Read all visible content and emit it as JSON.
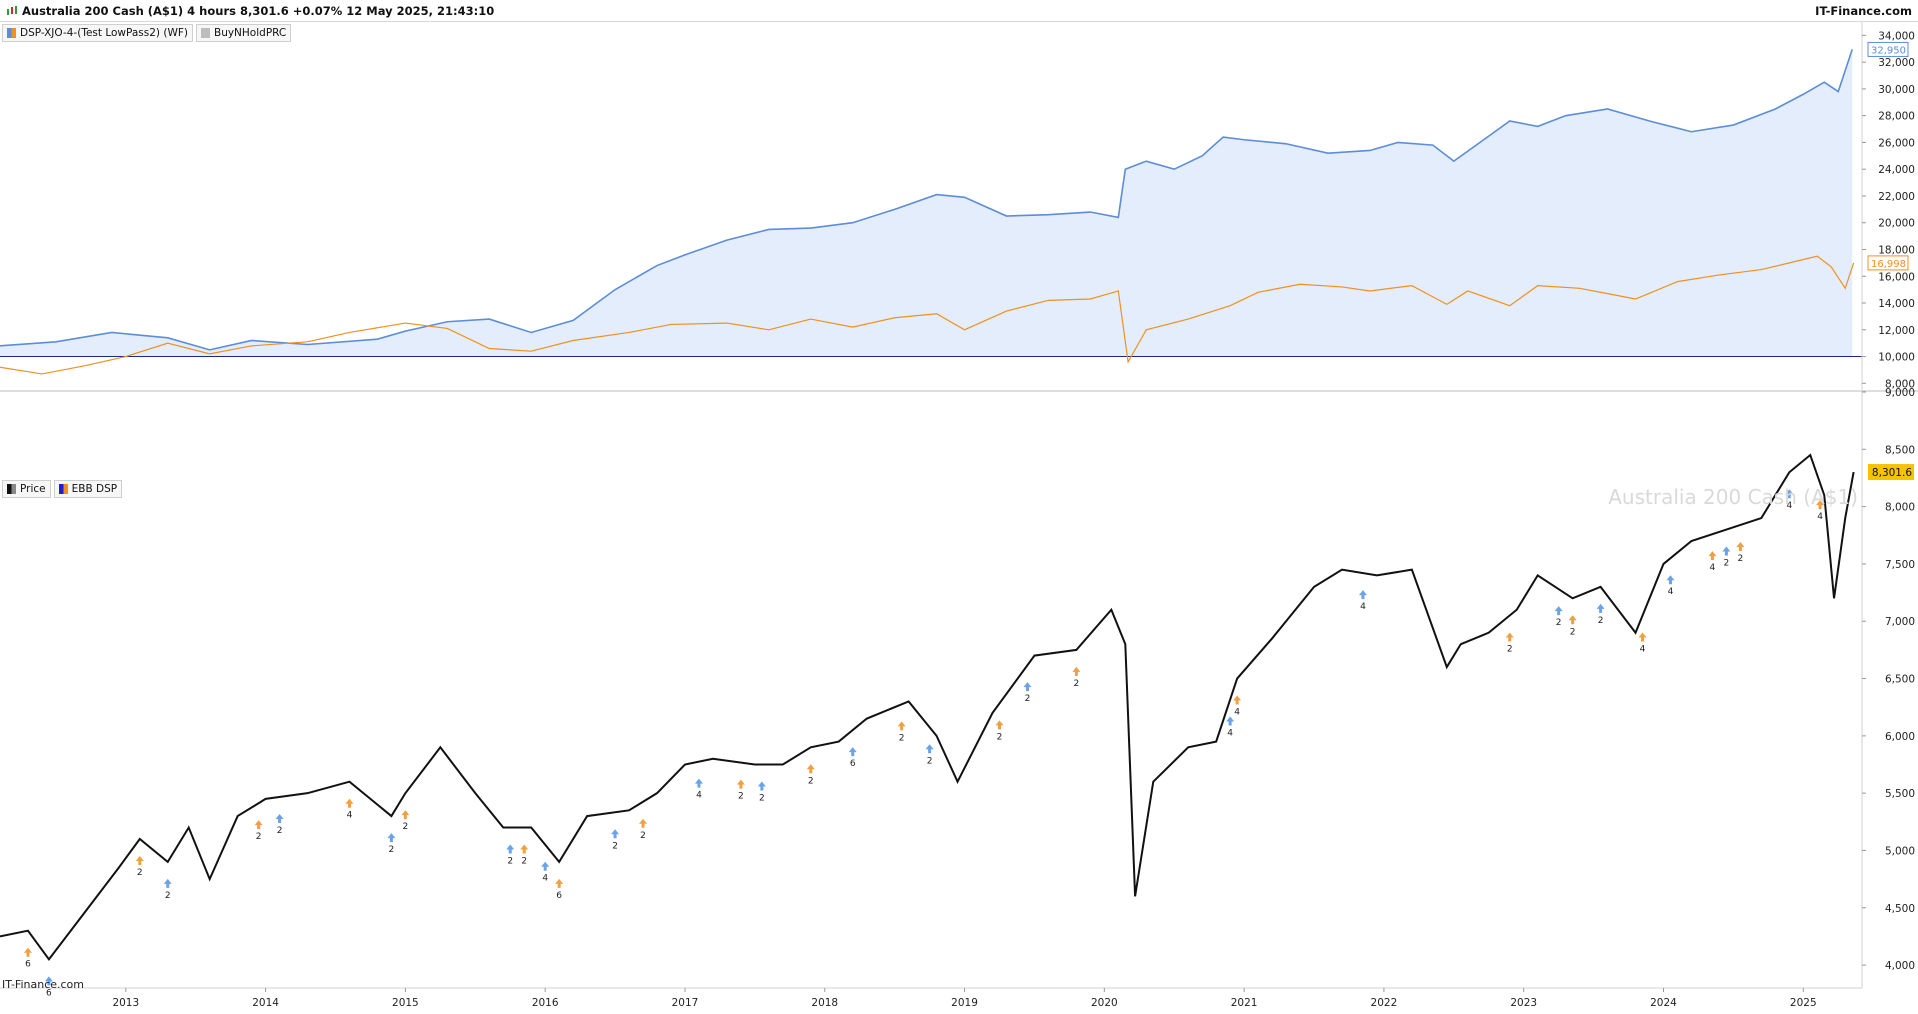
{
  "header": {
    "title": "Australia 200 Cash (A$1) 4 hours 8,301.6 +0.07% 12 May 2025, 21:43:10",
    "brand": "IT-Finance.com"
  },
  "top_panel": {
    "legend": [
      {
        "label": "DSP-XJO-4-(Test LowPass2) (WF)",
        "colors": [
          "#5b8dd9",
          "#f0901e"
        ]
      },
      {
        "label": "BuyNHoldPRC",
        "colors": [
          "#bdbdbd"
        ]
      }
    ]
  },
  "bottom_panel": {
    "legend": [
      {
        "label": "Price",
        "colors": [
          "#111111",
          "#888888"
        ]
      },
      {
        "label": "EBB DSP",
        "colors": [
          "#1f1fd0",
          "#f0901e"
        ]
      }
    ],
    "watermark": "Australia 200 Cash (A$1)",
    "footer_brand": "IT-Finance.com"
  },
  "colors": {
    "equity": "#5b8dd9",
    "equity_fill": "#e4edfb",
    "buyhold": "#f0901e",
    "baseline": "#1a2a8c",
    "price": "#111111",
    "signal_up": "#f0a040",
    "signal_up2": "#6aa3e8",
    "price_label_bg": "#f5c400"
  },
  "chart_data": [
    {
      "type": "line",
      "title": "",
      "ylim": [
        7500,
        35000
      ],
      "yticks": [
        8000,
        10000,
        12000,
        14000,
        16000,
        18000,
        20000,
        22000,
        24000,
        26000,
        28000,
        30000,
        32000,
        34000
      ],
      "ytick_labels": [
        "8,000",
        "10,000",
        "12,000",
        "14,000",
        "16,000",
        "18,000",
        "20,000",
        "22,000",
        "24,000",
        "26,000",
        "28,000",
        "30,000",
        "32,000",
        "34,000"
      ],
      "baseline": 10000,
      "last_labels": [
        "32,950",
        "16,998"
      ],
      "series": [
        {
          "name": "DSP-XJO-4-(Test LowPass2) (WF)",
          "x": [
            2012.1,
            2012.5,
            2012.9,
            2013.3,
            2013.6,
            2013.9,
            2014.3,
            2014.8,
            2015.0,
            2015.3,
            2015.6,
            2015.9,
            2016.2,
            2016.5,
            2016.8,
            2017.0,
            2017.3,
            2017.6,
            2017.9,
            2018.2,
            2018.5,
            2018.8,
            2019.0,
            2019.3,
            2019.6,
            2019.9,
            2020.1,
            2020.15,
            2020.3,
            2020.5,
            2020.7,
            2020.85,
            2021.0,
            2021.3,
            2021.6,
            2021.9,
            2022.1,
            2022.35,
            2022.5,
            2022.7,
            2022.9,
            2023.1,
            2023.3,
            2023.6,
            2023.9,
            2024.2,
            2024.5,
            2024.8,
            2025.0,
            2025.15,
            2025.25,
            2025.35
          ],
          "values": [
            10800,
            11100,
            11800,
            11400,
            10500,
            11200,
            10900,
            11300,
            11900,
            12600,
            12800,
            11800,
            12700,
            15000,
            16800,
            17600,
            18700,
            19500,
            19600,
            20000,
            21000,
            22100,
            21900,
            20500,
            20600,
            20800,
            20400,
            24000,
            24600,
            24000,
            25000,
            26400,
            26200,
            25900,
            25200,
            25400,
            26000,
            25800,
            24600,
            26100,
            27600,
            27200,
            28000,
            28500,
            27600,
            26800,
            27300,
            28500,
            29600,
            30500,
            29800,
            32950
          ]
        },
        {
          "name": "BuyNHoldPRC",
          "x": [
            2012.1,
            2012.4,
            2012.7,
            2013.0,
            2013.3,
            2013.6,
            2013.9,
            2014.3,
            2014.6,
            2015.0,
            2015.3,
            2015.6,
            2015.9,
            2016.2,
            2016.6,
            2016.9,
            2017.3,
            2017.6,
            2017.9,
            2018.2,
            2018.5,
            2018.8,
            2019.0,
            2019.3,
            2019.6,
            2019.9,
            2020.1,
            2020.17,
            2020.3,
            2020.6,
            2020.9,
            2021.1,
            2021.4,
            2021.7,
            2021.9,
            2022.2,
            2022.45,
            2022.6,
            2022.9,
            2023.1,
            2023.4,
            2023.6,
            2023.8,
            2024.1,
            2024.4,
            2024.7,
            2024.9,
            2025.1,
            2025.2,
            2025.3,
            2025.36
          ],
          "values": [
            9200,
            8700,
            9300,
            10000,
            11000,
            10200,
            10800,
            11100,
            11800,
            12500,
            12100,
            10600,
            10400,
            11200,
            11800,
            12400,
            12500,
            12000,
            12800,
            12200,
            12900,
            13200,
            12000,
            13400,
            14200,
            14300,
            14900,
            9600,
            12000,
            12800,
            13800,
            14800,
            15400,
            15200,
            14900,
            15300,
            13900,
            14900,
            13800,
            15300,
            15100,
            14700,
            14300,
            15600,
            16100,
            16500,
            17000,
            17500,
            16700,
            15100,
            16998
          ]
        }
      ]
    },
    {
      "type": "line",
      "title": "Australia 200 Cash (A$1)",
      "ylim": [
        3800,
        9000
      ],
      "yticks": [
        4000,
        4500,
        5000,
        5500,
        6000,
        6500,
        7000,
        7500,
        8000,
        8500,
        9000
      ],
      "ytick_labels": [
        "4,000",
        "4,500",
        "5,000",
        "5,500",
        "6,000",
        "6,500",
        "7,000",
        "7,500",
        "8,000",
        "8,500",
        "9,000"
      ],
      "last_label": "8,301.6",
      "xlim": [
        2012.1,
        2025.42
      ],
      "xticks": [
        2013,
        2014,
        2015,
        2016,
        2017,
        2018,
        2019,
        2020,
        2021,
        2022,
        2023,
        2024,
        2025
      ],
      "xtick_labels": [
        "2013",
        "2014",
        "2015",
        "2016",
        "2017",
        "2018",
        "2019",
        "2020",
        "2021",
        "2022",
        "2023",
        "2024",
        "2025"
      ],
      "series": [
        {
          "name": "Price",
          "x": [
            2012.1,
            2012.3,
            2012.45,
            2012.7,
            2012.95,
            2013.1,
            2013.3,
            2013.45,
            2013.6,
            2013.8,
            2014.0,
            2014.3,
            2014.6,
            2014.9,
            2015.0,
            2015.25,
            2015.5,
            2015.7,
            2015.9,
            2016.1,
            2016.3,
            2016.6,
            2016.8,
            2017.0,
            2017.2,
            2017.5,
            2017.7,
            2017.9,
            2018.1,
            2018.3,
            2018.6,
            2018.8,
            2018.95,
            2019.2,
            2019.5,
            2019.8,
            2020.05,
            2020.15,
            2020.22,
            2020.35,
            2020.6,
            2020.8,
            2020.95,
            2021.2,
            2021.5,
            2021.7,
            2021.95,
            2022.2,
            2022.45,
            2022.55,
            2022.75,
            2022.95,
            2023.1,
            2023.35,
            2023.55,
            2023.8,
            2024.0,
            2024.2,
            2024.45,
            2024.7,
            2024.9,
            2025.05,
            2025.15,
            2025.22,
            2025.3,
            2025.36
          ],
          "values": [
            4250,
            4300,
            4050,
            4450,
            4850,
            5100,
            4900,
            5200,
            4750,
            5300,
            5450,
            5500,
            5600,
            5300,
            5500,
            5900,
            5500,
            5200,
            5200,
            4900,
            5300,
            5350,
            5500,
            5750,
            5800,
            5750,
            5750,
            5900,
            5950,
            6150,
            6300,
            6000,
            5600,
            6200,
            6700,
            6750,
            7100,
            6800,
            4600,
            5600,
            5900,
            5950,
            6500,
            6850,
            7300,
            7450,
            7400,
            7450,
            6600,
            6800,
            6900,
            7100,
            7400,
            7200,
            7300,
            6900,
            7500,
            7700,
            7800,
            7900,
            8300,
            8450,
            8100,
            7200,
            7900,
            8301.6
          ]
        }
      ],
      "signals": [
        {
          "x": 2012.3,
          "label": "6"
        },
        {
          "x": 2012.45,
          "label": "6"
        },
        {
          "x": 2013.1,
          "label": "2"
        },
        {
          "x": 2013.3,
          "label": "2"
        },
        {
          "x": 2013.95,
          "label": "2"
        },
        {
          "x": 2014.1,
          "label": "2"
        },
        {
          "x": 2014.6,
          "label": "4"
        },
        {
          "x": 2014.9,
          "label": "2"
        },
        {
          "x": 2015.0,
          "label": "2"
        },
        {
          "x": 2015.75,
          "label": "2"
        },
        {
          "x": 2015.85,
          "label": "2"
        },
        {
          "x": 2016.0,
          "label": "4"
        },
        {
          "x": 2016.1,
          "label": "6"
        },
        {
          "x": 2016.5,
          "label": "2"
        },
        {
          "x": 2016.7,
          "label": "2"
        },
        {
          "x": 2017.1,
          "label": "4"
        },
        {
          "x": 2017.4,
          "label": "2"
        },
        {
          "x": 2017.55,
          "label": "2"
        },
        {
          "x": 2017.9,
          "label": "2"
        },
        {
          "x": 2018.2,
          "label": "6"
        },
        {
          "x": 2018.55,
          "label": "2"
        },
        {
          "x": 2018.75,
          "label": "2"
        },
        {
          "x": 2019.25,
          "label": "2"
        },
        {
          "x": 2019.45,
          "label": "2"
        },
        {
          "x": 2019.8,
          "label": "2"
        },
        {
          "x": 2020.9,
          "label": "4"
        },
        {
          "x": 2020.95,
          "label": "4"
        },
        {
          "x": 2021.85,
          "label": "4"
        },
        {
          "x": 2022.9,
          "label": "2"
        },
        {
          "x": 2023.25,
          "label": "2"
        },
        {
          "x": 2023.35,
          "label": "2"
        },
        {
          "x": 2023.55,
          "label": "2"
        },
        {
          "x": 2023.85,
          "label": "4"
        },
        {
          "x": 2024.05,
          "label": "4"
        },
        {
          "x": 2024.35,
          "label": "4"
        },
        {
          "x": 2024.45,
          "label": "2"
        },
        {
          "x": 2024.55,
          "label": "2"
        },
        {
          "x": 2024.9,
          "label": "4"
        },
        {
          "x": 2025.12,
          "label": "4"
        }
      ]
    }
  ]
}
